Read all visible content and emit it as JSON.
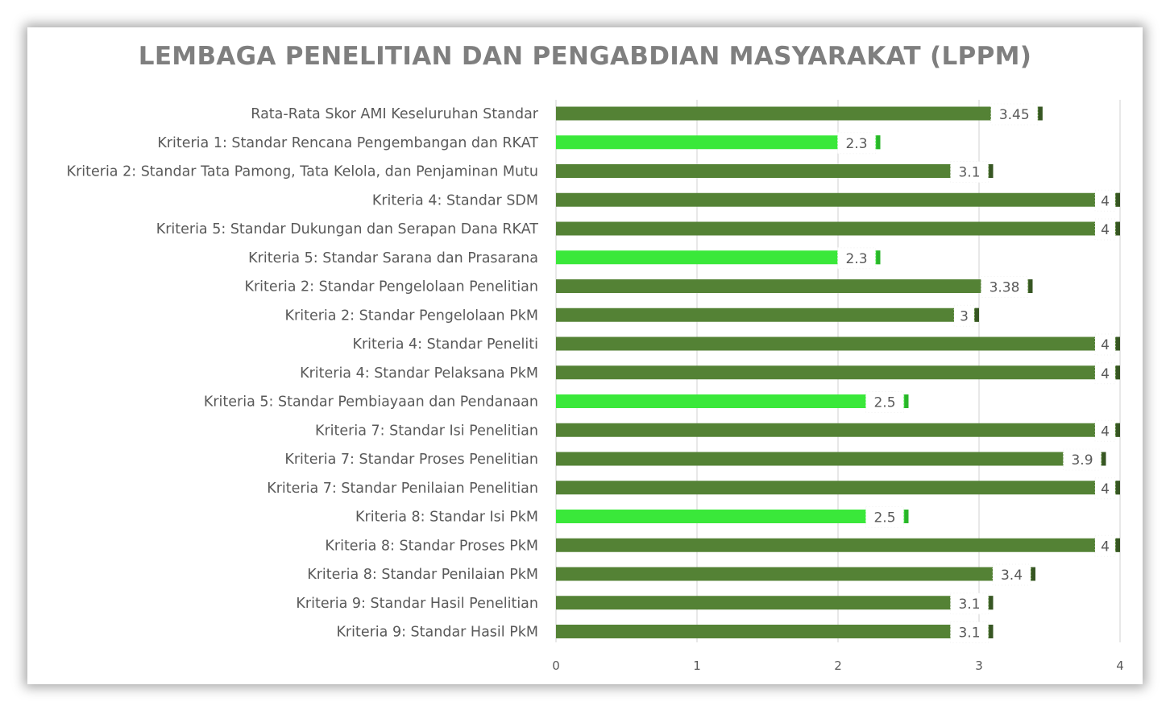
{
  "chart_data": {
    "type": "bar",
    "orientation": "horizontal",
    "title": "LEMBAGA PENELITIAN DAN PENGABDIAN MASYARAKAT (LPPM)",
    "xlabel": "",
    "ylabel": "",
    "xlim": [
      0,
      4
    ],
    "x_ticks": [
      "0",
      "1",
      "2",
      "3",
      "4"
    ],
    "grid": true,
    "legend": "none",
    "categories": [
      "Rata-Rata Skor AMI Keseluruhan Standar",
      "Kriteria 1: Standar Rencana Pengembangan dan RKAT",
      "Kriteria 2: Standar Tata Pamong, Tata Kelola, dan Penjaminan Mutu",
      "Kriteria 4: Standar SDM",
      "Kriteria 5: Standar Dukungan dan Serapan Dana RKAT",
      "Kriteria 5: Standar Sarana dan Prasarana",
      "Kriteria 2: Standar Pengelolaan Penelitian",
      "Kriteria 2: Standar Pengelolaan PkM",
      "Kriteria 4: Standar Peneliti",
      "Kriteria 4: Standar Pelaksana PkM",
      "Kriteria 5: Standar Pembiayaan dan Pendanaan",
      "Kriteria 7: Standar Isi Penelitian",
      "Kriteria 7: Standar Proses Penelitian",
      "Kriteria 7: Standar Penilaian Penelitian",
      "Kriteria 8: Standar Isi PkM",
      "Kriteria 8: Standar Proses PkM",
      "Kriteria 8: Standar Penilaian PkM",
      "Kriteria 9: Standar Hasil Penelitian",
      "Kriteria 9: Standar Hasil PkM"
    ],
    "values": [
      3.45,
      2.3,
      3.1,
      4,
      4,
      2.3,
      3.38,
      3,
      4,
      4,
      2.5,
      4,
      3.9,
      4,
      2.5,
      4,
      3.4,
      3.1,
      3.1
    ],
    "value_labels": [
      "3.45",
      "2.3",
      "3.1",
      "4",
      "4",
      "2.3",
      "3.38",
      "3",
      "4",
      "4",
      "2.5",
      "4",
      "3.9",
      "4",
      "2.5",
      "4",
      "3.4",
      "3.1",
      "3.1"
    ],
    "colors": {
      "high": "#548235",
      "high_shadow": "#375623",
      "low": "#3ae83a",
      "low_shadow": "#2ab52a",
      "grid": "#d9d9d9",
      "axis_text": "#595959",
      "title": "#7f7f7f"
    },
    "low_threshold": 3
  }
}
